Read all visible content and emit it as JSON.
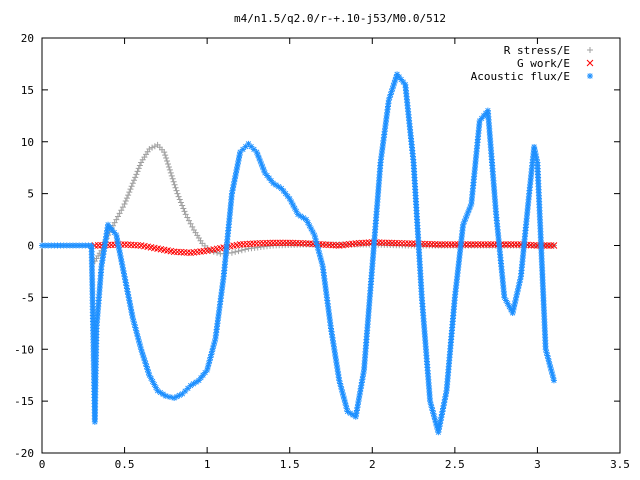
{
  "chart_data": {
    "type": "scatter",
    "title": "m4/n1.5/q2.0/r-+.10-j53/M0.0/512",
    "xlabel": "",
    "ylabel": "",
    "xlim": [
      0,
      3.5
    ],
    "ylim": [
      -20,
      20
    ],
    "x_ticks": [
      "0",
      "0.5",
      "1",
      "1.5",
      "2",
      "2.5",
      "3",
      "3.5"
    ],
    "y_ticks": [
      "20",
      "15",
      "10",
      "5",
      "0",
      "-5",
      "-10",
      "-15",
      "-20"
    ],
    "x_tick_values": [
      0,
      0.5,
      1,
      1.5,
      2,
      2.5,
      3,
      3.5
    ],
    "y_tick_values": [
      20,
      15,
      10,
      5,
      0,
      -5,
      -10,
      -15,
      -20
    ],
    "grid": false,
    "legend_position": "top-right",
    "series": [
      {
        "name": "R stress/E",
        "marker": "plus",
        "color": "#a0a0a0",
        "x": [
          0.32,
          0.36,
          0.4,
          0.45,
          0.5,
          0.55,
          0.6,
          0.65,
          0.7,
          0.74,
          0.78,
          0.82,
          0.87,
          0.92,
          0.97,
          1.02,
          1.08,
          1.15,
          1.25,
          1.4,
          1.6,
          1.8,
          2.0,
          2.2,
          2.4,
          2.6,
          2.8,
          3.0,
          3.1
        ],
        "y": [
          -1.5,
          -0.5,
          1.0,
          2.5,
          4.0,
          6.0,
          8.0,
          9.3,
          9.7,
          9.0,
          7.0,
          5.0,
          3.0,
          1.5,
          0.2,
          -0.5,
          -0.8,
          -0.7,
          -0.3,
          0.0,
          0.1,
          0.1,
          0.1,
          0.0,
          0.0,
          0.0,
          0.0,
          0.0,
          0.0
        ]
      },
      {
        "name": "G work/E",
        "marker": "cross",
        "color": "#ff0000",
        "x": [
          0.32,
          0.4,
          0.5,
          0.6,
          0.7,
          0.8,
          0.9,
          1.0,
          1.1,
          1.2,
          1.3,
          1.4,
          1.5,
          1.6,
          1.7,
          1.8,
          1.9,
          2.0,
          2.1,
          2.2,
          2.3,
          2.4,
          2.5,
          2.6,
          2.7,
          2.8,
          2.9,
          3.0,
          3.1
        ],
        "y": [
          0.0,
          0.05,
          0.1,
          0.0,
          -0.3,
          -0.6,
          -0.7,
          -0.5,
          -0.2,
          0.1,
          0.2,
          0.25,
          0.25,
          0.2,
          0.1,
          0.0,
          0.2,
          0.3,
          0.25,
          0.2,
          0.15,
          0.1,
          0.1,
          0.1,
          0.1,
          0.1,
          0.1,
          0.0,
          0.0
        ]
      },
      {
        "name": "Acoustic flux/E",
        "marker": "star",
        "color": "#1e90ff",
        "x": [
          0.0,
          0.3,
          0.32,
          0.33,
          0.36,
          0.4,
          0.45,
          0.5,
          0.55,
          0.6,
          0.65,
          0.7,
          0.75,
          0.8,
          0.85,
          0.9,
          0.95,
          1.0,
          1.05,
          1.1,
          1.15,
          1.2,
          1.25,
          1.3,
          1.35,
          1.4,
          1.45,
          1.5,
          1.55,
          1.6,
          1.65,
          1.7,
          1.75,
          1.8,
          1.85,
          1.9,
          1.95,
          2.0,
          2.05,
          2.1,
          2.15,
          2.2,
          2.25,
          2.3,
          2.35,
          2.4,
          2.45,
          2.5,
          2.55,
          2.6,
          2.65,
          2.7,
          2.75,
          2.8,
          2.85,
          2.9,
          2.95,
          2.98,
          3.0,
          3.05,
          3.1
        ],
        "y": [
          0.0,
          0.0,
          -17.0,
          -8.0,
          -2.0,
          2.0,
          1.0,
          -3.0,
          -7.0,
          -10.0,
          -12.5,
          -14.0,
          -14.5,
          -14.7,
          -14.3,
          -13.5,
          -13.0,
          -12.0,
          -9.0,
          -3.0,
          5.0,
          9.0,
          9.8,
          9.0,
          7.0,
          6.0,
          5.5,
          4.5,
          3.0,
          2.5,
          1.0,
          -2.0,
          -8.0,
          -13.0,
          -16.0,
          -16.5,
          -12.0,
          -2.0,
          8.0,
          14.0,
          16.5,
          15.5,
          8.0,
          -5.0,
          -15.0,
          -18.0,
          -14.0,
          -5.0,
          2.0,
          4.0,
          12.0,
          13.0,
          3.0,
          -5.0,
          -6.5,
          -3.0,
          5.0,
          9.5,
          8.0,
          -10.0,
          -13.0
        ]
      }
    ]
  }
}
